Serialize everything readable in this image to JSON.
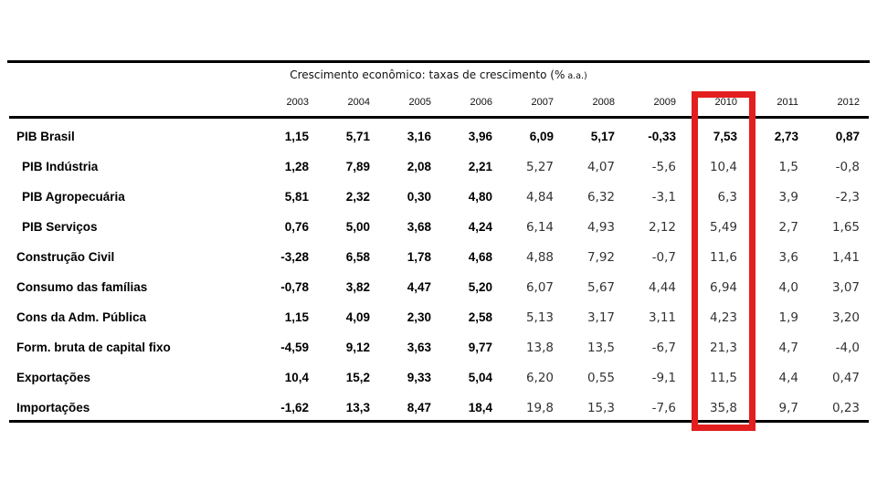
{
  "title": {
    "main": "Crescimento econômico: taxas de crescimento (%",
    "small": "a.a.)"
  },
  "highlight": {
    "column": "2010",
    "color": "#e31e1e"
  },
  "colors": {
    "rule_line": "#000000",
    "bold_text": "#000000",
    "light_text": "#333333",
    "background": "#ffffff"
  },
  "chart_data": {
    "type": "table",
    "title": "Crescimento econômico: taxas de crescimento (% a.a.)",
    "columns": [
      "2003",
      "2004",
      "2005",
      "2006",
      "2007",
      "2008",
      "2009",
      "2010",
      "2011",
      "2012"
    ],
    "bold_first_n_columns": 4,
    "rows": [
      {
        "label": "PIB Brasil",
        "indent": false,
        "bold_all": true,
        "values": [
          "1,15",
          "5,71",
          "3,16",
          "3,96",
          "6,09",
          "5,17",
          "-0,33",
          "7,53",
          "2,73",
          "0,87"
        ]
      },
      {
        "label": "PIB Indústria",
        "indent": true,
        "bold_all": false,
        "values": [
          "1,28",
          "7,89",
          "2,08",
          "2,21",
          "5,27",
          "4,07",
          "-5,6",
          "10,4",
          "1,5",
          "-0,8"
        ]
      },
      {
        "label": "PIB Agropecuária",
        "indent": true,
        "bold_all": false,
        "values": [
          "5,81",
          "2,32",
          "0,30",
          "4,80",
          "4,84",
          "6,32",
          "-3,1",
          "6,3",
          "3,9",
          "-2,3"
        ]
      },
      {
        "label": "PIB Serviços",
        "indent": true,
        "bold_all": false,
        "values": [
          "0,76",
          "5,00",
          "3,68",
          "4,24",
          "6,14",
          "4,93",
          "2,12",
          "5,49",
          "2,7",
          "1,65"
        ]
      },
      {
        "label": "Construção Civil",
        "indent": false,
        "bold_all": false,
        "values": [
          "-3,28",
          "6,58",
          "1,78",
          "4,68",
          "4,88",
          "7,92",
          "-0,7",
          "11,6",
          "3,6",
          "1,41"
        ]
      },
      {
        "label": "Consumo das famílias",
        "indent": false,
        "bold_all": false,
        "values": [
          "-0,78",
          "3,82",
          "4,47",
          "5,20",
          "6,07",
          "5,67",
          "4,44",
          "6,94",
          "4,0",
          "3,07"
        ]
      },
      {
        "label": "Cons da Adm. Pública",
        "indent": false,
        "bold_all": false,
        "values": [
          "1,15",
          "4,09",
          "2,30",
          "2,58",
          "5,13",
          "3,17",
          "3,11",
          "4,23",
          "1,9",
          "3,20"
        ]
      },
      {
        "label": "Form. bruta de capital fixo",
        "indent": false,
        "bold_all": false,
        "values": [
          "-4,59",
          "9,12",
          "3,63",
          "9,77",
          "13,8",
          "13,5",
          "-6,7",
          "21,3",
          "4,7",
          "-4,0"
        ]
      },
      {
        "label": "Exportações",
        "indent": false,
        "bold_all": false,
        "values": [
          "10,4",
          "15,2",
          "9,33",
          "5,04",
          "6,20",
          "0,55",
          "-9,1",
          "11,5",
          "4,4",
          "0,47"
        ]
      },
      {
        "label": "Importações",
        "indent": false,
        "bold_all": false,
        "values": [
          "-1,62",
          "13,3",
          "8,47",
          "18,4",
          "19,8",
          "15,3",
          "-7,6",
          "35,8",
          "9,7",
          "0,23"
        ]
      }
    ]
  }
}
